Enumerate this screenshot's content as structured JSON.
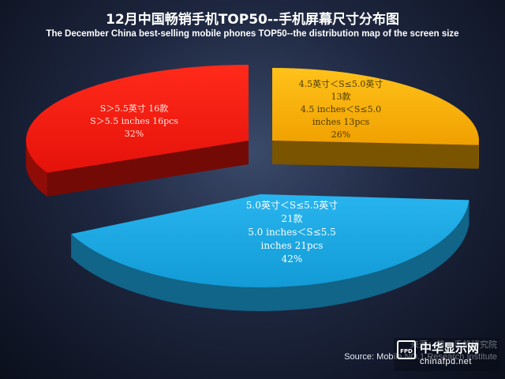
{
  "title_cn": "12月中国畅销手机TOP50--手机屏幕尺寸分布图",
  "title_en": "The December China best-selling mobile phones TOP50--the distribution map of the screen size",
  "source_cn": "来源：第一手机研究院",
  "source_en": "Source: Mobile NO.1 Research Institute",
  "logo": {
    "mark": "FPD",
    "cn": "中华显示网",
    "en": "chinafpd.net"
  },
  "chart_data": {
    "type": "pie",
    "title": "12月中国畅销手机TOP50--手机屏幕尺寸分布图",
    "subtitle": "The December China best-selling mobile phones TOP50--the distribution map of the screen size",
    "slices": [
      {
        "key": "yellow",
        "label_cn": "4.5英寸＜S≤5.0英寸",
        "count_cn": "13款",
        "label_en": "4.5 inches＜S≤5.0",
        "count_en": "inches   13pcs",
        "percent": 26,
        "percent_label": "26%",
        "color": "#f5a800"
      },
      {
        "key": "blue",
        "label_cn": "5.0英寸＜S≤5.5英寸",
        "count_cn": "21款",
        "label_en": "5.0 inches＜S≤5.5",
        "count_en": "inches   21pcs",
        "percent": 42,
        "percent_label": "42%",
        "color": "#1aa3dd"
      },
      {
        "key": "red",
        "label_cn": "S＞5.5英寸 16款",
        "label_en": "S＞5.5 inches   16pcs",
        "percent": 32,
        "percent_label": "32%",
        "color": "#e8140c"
      }
    ]
  }
}
